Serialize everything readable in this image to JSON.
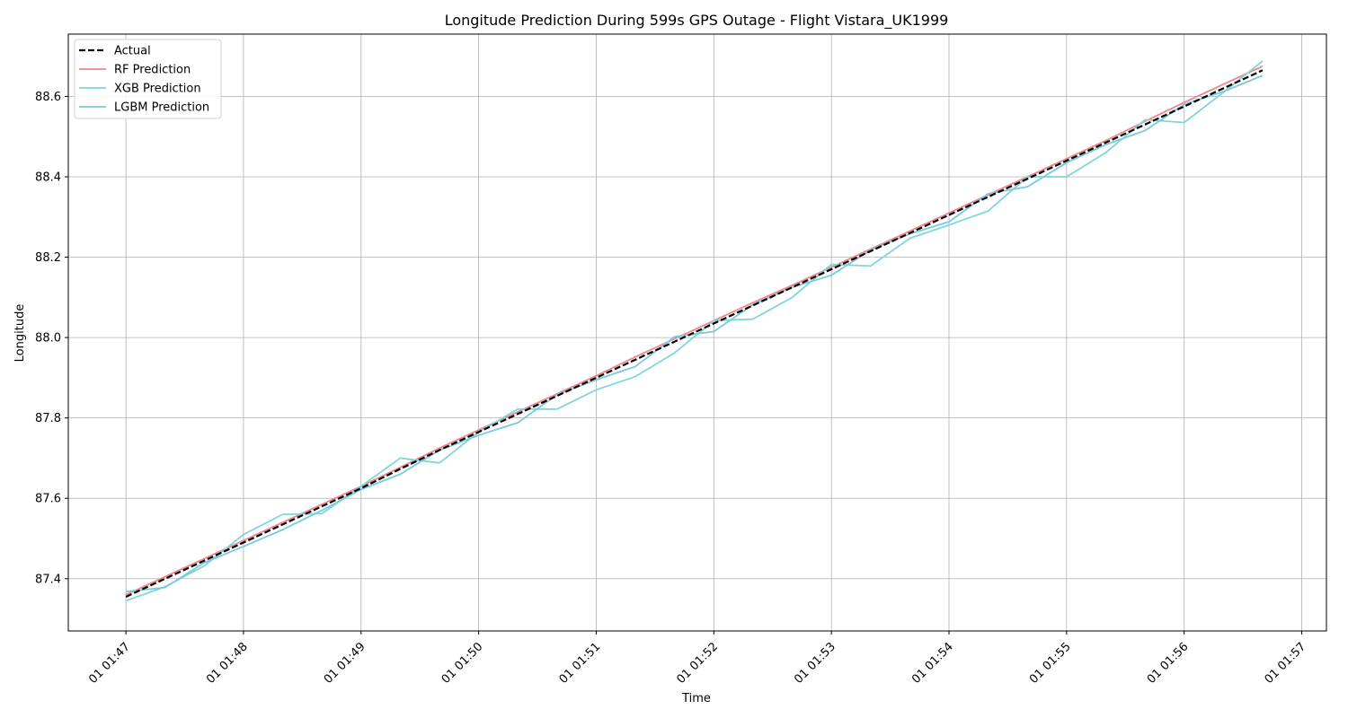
{
  "chart_data": {
    "type": "line",
    "title": "Longitude Prediction During 599s GPS Outage - Flight Vistara_UK1999",
    "xlabel": "Time",
    "ylabel": "Longitude",
    "xlim": [
      -0.49,
      10.21
    ],
    "ylim": [
      87.27,
      88.755
    ],
    "grid": true,
    "legend_position": "top-left",
    "x_ticks": [
      {
        "value": 0,
        "label": "01 01:47"
      },
      {
        "value": 1,
        "label": "01 01:48"
      },
      {
        "value": 2,
        "label": "01 01:49"
      },
      {
        "value": 3,
        "label": "01 01:50"
      },
      {
        "value": 4,
        "label": "01 01:51"
      },
      {
        "value": 5,
        "label": "01 01:52"
      },
      {
        "value": 6,
        "label": "01 01:53"
      },
      {
        "value": 7,
        "label": "01 01:54"
      },
      {
        "value": 8,
        "label": "01 01:55"
      },
      {
        "value": 9,
        "label": "01 01:56"
      },
      {
        "value": 10,
        "label": "01 01:57"
      }
    ],
    "y_ticks": [
      87.4,
      87.6,
      87.8,
      88.0,
      88.2,
      88.4,
      88.6
    ],
    "x": [
      0,
      0.333,
      0.667,
      1,
      1.333,
      1.667,
      2,
      2.333,
      2.667,
      3,
      3.333,
      3.667,
      4,
      4.333,
      4.667,
      5,
      5.333,
      5.667,
      6,
      6.333,
      6.667,
      7,
      7.333,
      7.667,
      8,
      8.333,
      8.667,
      9,
      9.333,
      9.667
    ],
    "series": [
      {
        "name": "Actual",
        "color": "#000000",
        "dash": "dashed",
        "values": [
          87.355,
          87.4,
          87.445,
          87.49,
          87.535,
          87.58,
          87.625,
          87.673,
          87.72,
          87.765,
          87.81,
          87.855,
          87.9,
          87.945,
          87.99,
          88.035,
          88.08,
          88.125,
          88.17,
          88.215,
          88.26,
          88.305,
          88.35,
          88.395,
          88.44,
          88.485,
          88.53,
          88.575,
          88.62,
          88.665
        ]
      },
      {
        "name": "RF Prediction",
        "color": "#f0868c",
        "dash": "solid",
        "values": [
          87.36,
          87.405,
          87.45,
          87.495,
          87.54,
          87.585,
          87.63,
          87.677,
          87.725,
          87.77,
          87.815,
          87.86,
          87.905,
          87.952,
          87.997,
          88.042,
          88.087,
          88.13,
          88.175,
          88.22,
          88.265,
          88.31,
          88.355,
          88.4,
          88.445,
          88.49,
          88.538,
          88.585,
          88.63,
          88.675
        ]
      },
      {
        "name": "XGB Prediction",
        "color": "#7fd6d9",
        "dash": "solid",
        "values": [
          87.345,
          87.38,
          87.432,
          87.51,
          87.56,
          87.562,
          87.63,
          87.7,
          87.688,
          87.765,
          87.822,
          87.822,
          87.87,
          87.903,
          87.962,
          88.042,
          88.046,
          88.1,
          88.182,
          88.178,
          88.247,
          88.28,
          88.315,
          88.4,
          88.4,
          88.46,
          88.542,
          88.535,
          88.61,
          88.688
        ]
      },
      {
        "name": "LGBM Prediction",
        "color": "#7ac9e0",
        "dash": "solid",
        "values": [
          87.368,
          87.378,
          87.44,
          87.48,
          87.522,
          87.57,
          87.622,
          87.66,
          87.72,
          87.757,
          87.788,
          87.858,
          87.895,
          87.928,
          88.002,
          88.015,
          88.082,
          88.125,
          88.155,
          88.218,
          88.258,
          88.288,
          88.358,
          88.375,
          88.435,
          88.48,
          88.515,
          88.58,
          88.612,
          88.652
        ]
      }
    ]
  }
}
